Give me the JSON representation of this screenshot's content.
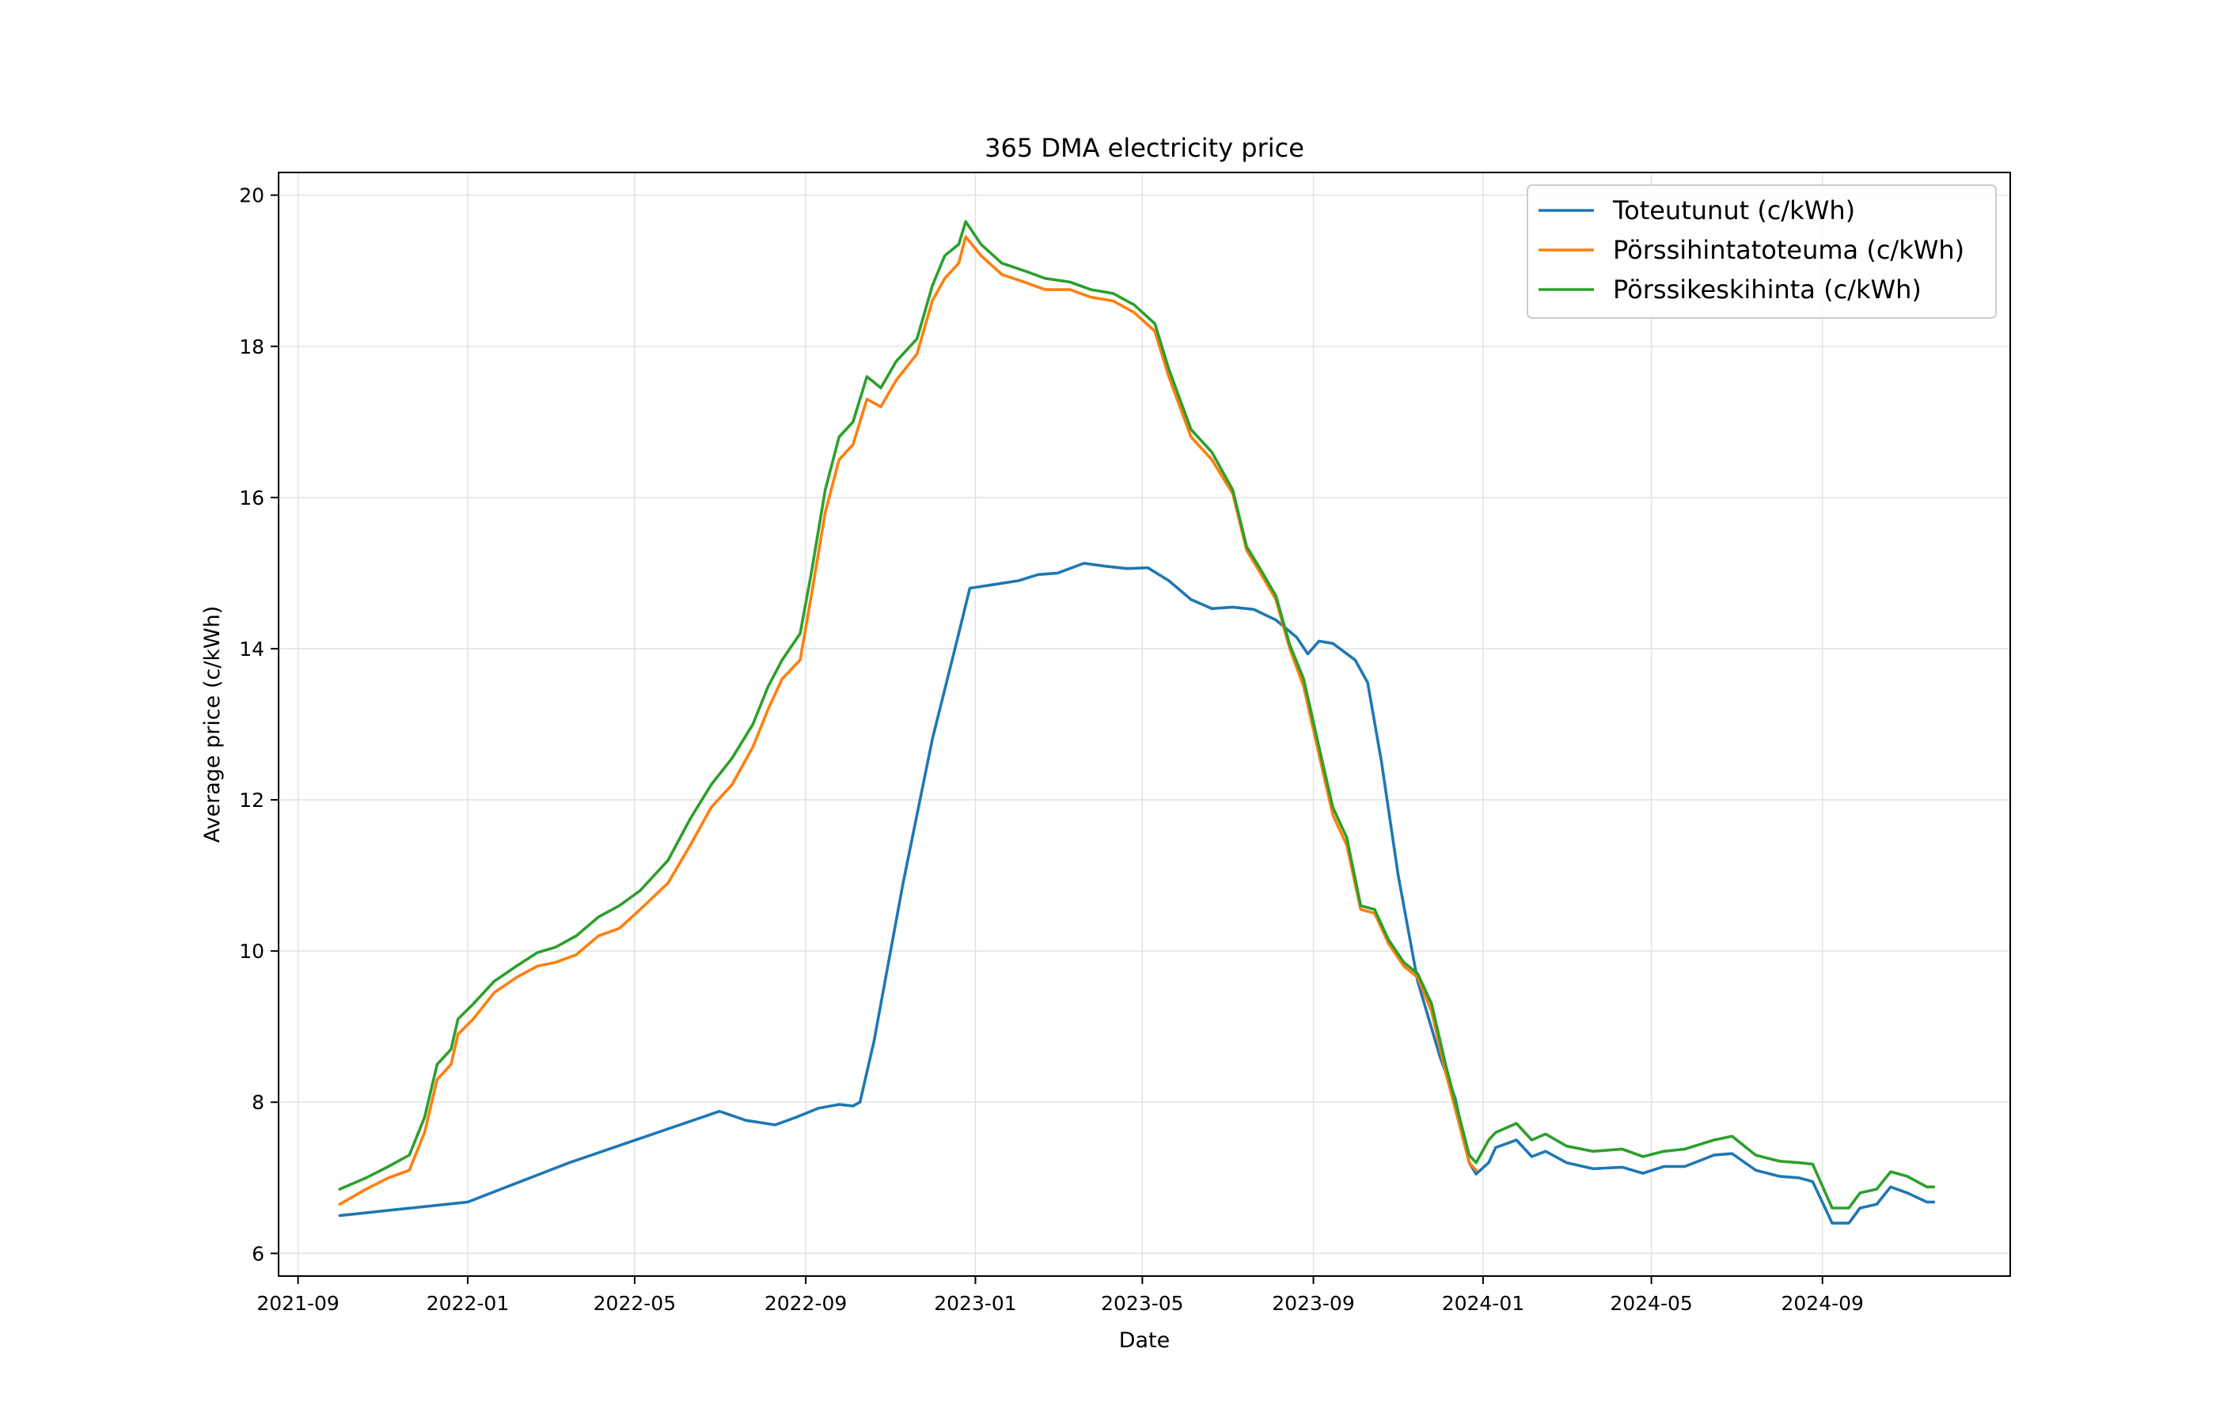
{
  "chart_data": {
    "type": "line",
    "title": "365 DMA electricity price",
    "xlabel": "Date",
    "ylabel": "Average price (c/kWh)",
    "x_type": "date",
    "xlim": [
      "2021-08-18",
      "2025-01-14"
    ],
    "ylim": [
      5.7,
      20.3
    ],
    "x_ticks": [
      "2021-09",
      "2022-01",
      "2022-05",
      "2022-09",
      "2023-01",
      "2023-05",
      "2023-09",
      "2024-01",
      "2024-05",
      "2024-09"
    ],
    "y_ticks": [
      6,
      8,
      10,
      12,
      14,
      16,
      18,
      20
    ],
    "grid": true,
    "legend_position": "top-right",
    "series": [
      {
        "name": "Toteutunut (c/kWh)",
        "color": "#1f77b4",
        "points": [
          [
            "2021-10-01",
            6.5
          ],
          [
            "2022-01-01",
            6.68
          ],
          [
            "2022-03-15",
            7.2
          ],
          [
            "2022-07-01",
            7.88
          ],
          [
            "2022-07-20",
            7.76
          ],
          [
            "2022-08-10",
            7.7
          ],
          [
            "2022-08-25",
            7.8
          ],
          [
            "2022-09-10",
            7.92
          ],
          [
            "2022-09-25",
            7.97
          ],
          [
            "2022-10-05",
            7.95
          ],
          [
            "2022-10-10",
            8.0
          ],
          [
            "2022-10-20",
            8.8
          ],
          [
            "2022-11-10",
            10.9
          ],
          [
            "2022-12-01",
            12.8
          ],
          [
            "2022-12-20",
            14.2
          ],
          [
            "2022-12-28",
            14.8
          ],
          [
            "2023-01-15",
            14.85
          ],
          [
            "2023-02-01",
            14.9
          ],
          [
            "2023-02-15",
            14.98
          ],
          [
            "2023-03-01",
            15.0
          ],
          [
            "2023-03-20",
            15.13
          ],
          [
            "2023-04-05",
            15.09
          ],
          [
            "2023-04-20",
            15.06
          ],
          [
            "2023-05-05",
            15.07
          ],
          [
            "2023-05-20",
            14.9
          ],
          [
            "2023-06-05",
            14.65
          ],
          [
            "2023-06-20",
            14.53
          ],
          [
            "2023-07-05",
            14.55
          ],
          [
            "2023-07-20",
            14.52
          ],
          [
            "2023-08-05",
            14.38
          ],
          [
            "2023-08-20",
            14.15
          ],
          [
            "2023-08-28",
            13.93
          ],
          [
            "2023-09-05",
            14.1
          ],
          [
            "2023-09-15",
            14.07
          ],
          [
            "2023-10-01",
            13.85
          ],
          [
            "2023-10-10",
            13.55
          ],
          [
            "2023-10-20",
            12.5
          ],
          [
            "2023-11-01",
            11.0
          ],
          [
            "2023-11-15",
            9.6
          ],
          [
            "2023-12-01",
            8.6
          ],
          [
            "2023-12-12",
            8.05
          ],
          [
            "2023-12-22",
            7.2
          ],
          [
            "2023-12-27",
            7.05
          ],
          [
            "2024-01-05",
            7.2
          ],
          [
            "2024-01-10",
            7.4
          ],
          [
            "2024-01-25",
            7.5
          ],
          [
            "2024-02-05",
            7.28
          ],
          [
            "2024-02-15",
            7.35
          ],
          [
            "2024-03-01",
            7.2
          ],
          [
            "2024-03-20",
            7.12
          ],
          [
            "2024-04-10",
            7.14
          ],
          [
            "2024-04-25",
            7.06
          ],
          [
            "2024-05-10",
            7.15
          ],
          [
            "2024-05-25",
            7.15
          ],
          [
            "2024-06-15",
            7.3
          ],
          [
            "2024-06-28",
            7.32
          ],
          [
            "2024-07-15",
            7.1
          ],
          [
            "2024-08-01",
            7.02
          ],
          [
            "2024-08-15",
            7.0
          ],
          [
            "2024-08-25",
            6.95
          ],
          [
            "2024-09-08",
            6.4
          ],
          [
            "2024-09-20",
            6.4
          ],
          [
            "2024-09-28",
            6.6
          ],
          [
            "2024-10-10",
            6.65
          ],
          [
            "2024-10-20",
            6.88
          ],
          [
            "2024-11-01",
            6.8
          ],
          [
            "2024-11-15",
            6.68
          ],
          [
            "2024-11-20",
            6.68
          ]
        ]
      },
      {
        "name": "Pörssihintatoteuma (c/kWh)",
        "color": "#ff7f0e",
        "points": [
          [
            "2021-10-01",
            6.65
          ],
          [
            "2021-10-20",
            6.85
          ],
          [
            "2021-11-05",
            7.0
          ],
          [
            "2021-11-20",
            7.1
          ],
          [
            "2021-12-01",
            7.6
          ],
          [
            "2021-12-10",
            8.3
          ],
          [
            "2021-12-20",
            8.5
          ],
          [
            "2021-12-25",
            8.9
          ],
          [
            "2022-01-05",
            9.1
          ],
          [
            "2022-01-20",
            9.45
          ],
          [
            "2022-02-05",
            9.65
          ],
          [
            "2022-02-20",
            9.8
          ],
          [
            "2022-03-05",
            9.85
          ],
          [
            "2022-03-20",
            9.95
          ],
          [
            "2022-04-05",
            10.2
          ],
          [
            "2022-04-20",
            10.3
          ],
          [
            "2022-05-05",
            10.55
          ],
          [
            "2022-05-25",
            10.9
          ],
          [
            "2022-06-10",
            11.4
          ],
          [
            "2022-06-25",
            11.9
          ],
          [
            "2022-07-10",
            12.2
          ],
          [
            "2022-07-25",
            12.7
          ],
          [
            "2022-08-05",
            13.2
          ],
          [
            "2022-08-15",
            13.6
          ],
          [
            "2022-08-28",
            13.85
          ],
          [
            "2022-09-05",
            14.7
          ],
          [
            "2022-09-15",
            15.8
          ],
          [
            "2022-09-25",
            16.5
          ],
          [
            "2022-10-05",
            16.7
          ],
          [
            "2022-10-15",
            17.3
          ],
          [
            "2022-10-25",
            17.2
          ],
          [
            "2022-11-05",
            17.55
          ],
          [
            "2022-11-20",
            17.9
          ],
          [
            "2022-12-01",
            18.6
          ],
          [
            "2022-12-10",
            18.9
          ],
          [
            "2022-12-20",
            19.1
          ],
          [
            "2022-12-25",
            19.45
          ],
          [
            "2023-01-05",
            19.2
          ],
          [
            "2023-01-20",
            18.95
          ],
          [
            "2023-02-05",
            18.85
          ],
          [
            "2023-02-20",
            18.75
          ],
          [
            "2023-03-10",
            18.75
          ],
          [
            "2023-03-25",
            18.65
          ],
          [
            "2023-04-10",
            18.6
          ],
          [
            "2023-04-25",
            18.45
          ],
          [
            "2023-05-10",
            18.2
          ],
          [
            "2023-05-20",
            17.6
          ],
          [
            "2023-06-05",
            16.8
          ],
          [
            "2023-06-20",
            16.5
          ],
          [
            "2023-07-05",
            16.05
          ],
          [
            "2023-07-15",
            15.3
          ],
          [
            "2023-07-25",
            15.0
          ],
          [
            "2023-08-05",
            14.65
          ],
          [
            "2023-08-15",
            14.0
          ],
          [
            "2023-08-25",
            13.5
          ],
          [
            "2023-09-05",
            12.6
          ],
          [
            "2023-09-15",
            11.8
          ],
          [
            "2023-09-25",
            11.4
          ],
          [
            "2023-10-05",
            10.55
          ],
          [
            "2023-10-15",
            10.5
          ],
          [
            "2023-10-25",
            10.1
          ],
          [
            "2023-11-05",
            9.8
          ],
          [
            "2023-11-15",
            9.65
          ],
          [
            "2023-11-25",
            9.2
          ],
          [
            "2023-12-05",
            8.4
          ],
          [
            "2023-12-15",
            7.7
          ],
          [
            "2023-12-22",
            7.2
          ],
          [
            "2023-12-27",
            7.1
          ]
        ]
      },
      {
        "name": "Pörssikeskihinta (c/kWh)",
        "color": "#2ca02c",
        "points": [
          [
            "2021-10-01",
            6.85
          ],
          [
            "2021-10-20",
            7.0
          ],
          [
            "2021-11-05",
            7.15
          ],
          [
            "2021-11-20",
            7.3
          ],
          [
            "2021-12-01",
            7.8
          ],
          [
            "2021-12-10",
            8.5
          ],
          [
            "2021-12-20",
            8.7
          ],
          [
            "2021-12-25",
            9.1
          ],
          [
            "2022-01-05",
            9.3
          ],
          [
            "2022-01-20",
            9.6
          ],
          [
            "2022-02-05",
            9.8
          ],
          [
            "2022-02-20",
            9.98
          ],
          [
            "2022-03-05",
            10.05
          ],
          [
            "2022-03-20",
            10.2
          ],
          [
            "2022-04-05",
            10.45
          ],
          [
            "2022-04-20",
            10.6
          ],
          [
            "2022-05-05",
            10.8
          ],
          [
            "2022-05-25",
            11.2
          ],
          [
            "2022-06-10",
            11.75
          ],
          [
            "2022-06-25",
            12.2
          ],
          [
            "2022-07-10",
            12.55
          ],
          [
            "2022-07-25",
            13.0
          ],
          [
            "2022-08-05",
            13.5
          ],
          [
            "2022-08-15",
            13.85
          ],
          [
            "2022-08-28",
            14.2
          ],
          [
            "2022-09-05",
            15.0
          ],
          [
            "2022-09-15",
            16.1
          ],
          [
            "2022-09-25",
            16.8
          ],
          [
            "2022-10-05",
            17.0
          ],
          [
            "2022-10-15",
            17.6
          ],
          [
            "2022-10-25",
            17.45
          ],
          [
            "2022-11-05",
            17.8
          ],
          [
            "2022-11-20",
            18.1
          ],
          [
            "2022-12-01",
            18.8
          ],
          [
            "2022-12-10",
            19.2
          ],
          [
            "2022-12-20",
            19.35
          ],
          [
            "2022-12-25",
            19.65
          ],
          [
            "2023-01-05",
            19.35
          ],
          [
            "2023-01-20",
            19.1
          ],
          [
            "2023-02-05",
            19.0
          ],
          [
            "2023-02-20",
            18.9
          ],
          [
            "2023-03-10",
            18.85
          ],
          [
            "2023-03-25",
            18.75
          ],
          [
            "2023-04-10",
            18.7
          ],
          [
            "2023-04-25",
            18.55
          ],
          [
            "2023-05-10",
            18.3
          ],
          [
            "2023-05-20",
            17.7
          ],
          [
            "2023-06-05",
            16.9
          ],
          [
            "2023-06-20",
            16.6
          ],
          [
            "2023-07-05",
            16.1
          ],
          [
            "2023-07-15",
            15.35
          ],
          [
            "2023-07-25",
            15.05
          ],
          [
            "2023-08-05",
            14.7
          ],
          [
            "2023-08-15",
            14.05
          ],
          [
            "2023-08-25",
            13.6
          ],
          [
            "2023-09-05",
            12.7
          ],
          [
            "2023-09-15",
            11.9
          ],
          [
            "2023-09-25",
            11.5
          ],
          [
            "2023-10-05",
            10.6
          ],
          [
            "2023-10-15",
            10.55
          ],
          [
            "2023-10-25",
            10.15
          ],
          [
            "2023-11-05",
            9.85
          ],
          [
            "2023-11-15",
            9.7
          ],
          [
            "2023-11-25",
            9.3
          ],
          [
            "2023-12-05",
            8.5
          ],
          [
            "2023-12-15",
            7.8
          ],
          [
            "2023-12-22",
            7.3
          ],
          [
            "2023-12-27",
            7.2
          ],
          [
            "2024-01-05",
            7.5
          ],
          [
            "2024-01-10",
            7.6
          ],
          [
            "2024-01-25",
            7.72
          ],
          [
            "2024-02-05",
            7.5
          ],
          [
            "2024-02-15",
            7.58
          ],
          [
            "2024-03-01",
            7.42
          ],
          [
            "2024-03-20",
            7.35
          ],
          [
            "2024-04-10",
            7.38
          ],
          [
            "2024-04-25",
            7.28
          ],
          [
            "2024-05-10",
            7.35
          ],
          [
            "2024-05-25",
            7.38
          ],
          [
            "2024-06-15",
            7.5
          ],
          [
            "2024-06-28",
            7.55
          ],
          [
            "2024-07-15",
            7.3
          ],
          [
            "2024-08-01",
            7.22
          ],
          [
            "2024-08-15",
            7.2
          ],
          [
            "2024-08-25",
            7.18
          ],
          [
            "2024-09-08",
            6.6
          ],
          [
            "2024-09-20",
            6.6
          ],
          [
            "2024-09-28",
            6.8
          ],
          [
            "2024-10-10",
            6.85
          ],
          [
            "2024-10-20",
            7.08
          ],
          [
            "2024-11-01",
            7.02
          ],
          [
            "2024-11-15",
            6.88
          ],
          [
            "2024-11-20",
            6.88
          ]
        ]
      }
    ]
  }
}
